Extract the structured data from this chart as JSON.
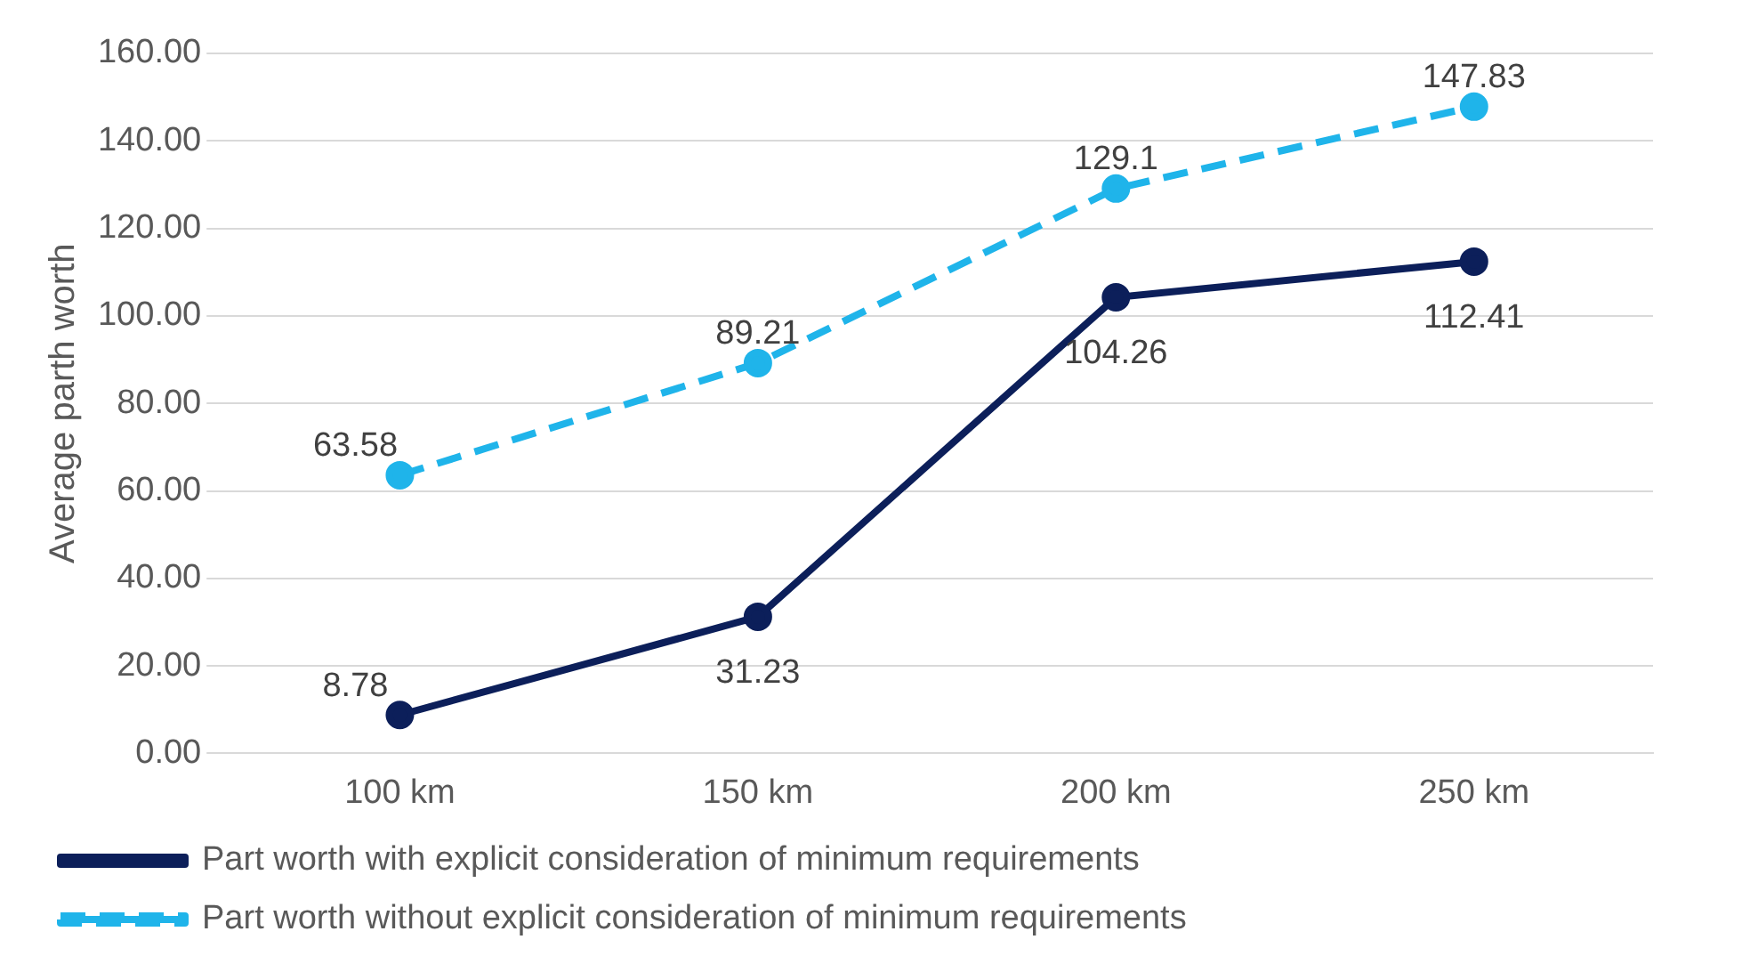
{
  "chart_data": {
    "type": "line",
    "ylabel": "Average parth worth",
    "categories": [
      "100 km",
      "150 km",
      "200 km",
      "250 km"
    ],
    "series": [
      {
        "name": "Part worth with explicit consideration of minimum requirements",
        "color": "#0c1f5a",
        "values": [
          8.78,
          31.23,
          104.26,
          112.41
        ],
        "line_style": "solid"
      },
      {
        "name": "Part worth without explicit consideration of minimum requirements",
        "color": "#1fb4ea",
        "values": [
          63.58,
          89.21,
          129.1,
          147.83
        ],
        "line_style": "dashed"
      }
    ],
    "ylim": [
      0,
      160
    ],
    "yticks": [
      {
        "value": 0,
        "label": "0.00"
      },
      {
        "value": 20,
        "label": "20.00"
      },
      {
        "value": 40,
        "label": "40.00"
      },
      {
        "value": 60,
        "label": "60.00"
      },
      {
        "value": 80,
        "label": "80.00"
      },
      {
        "value": 100,
        "label": "100.00"
      },
      {
        "value": 120,
        "label": "120.00"
      },
      {
        "value": 140,
        "label": "140.00"
      },
      {
        "value": 160,
        "label": "160.00"
      }
    ],
    "grid": "y",
    "legend": "bottom",
    "marker": "circle",
    "data_labels": true
  }
}
